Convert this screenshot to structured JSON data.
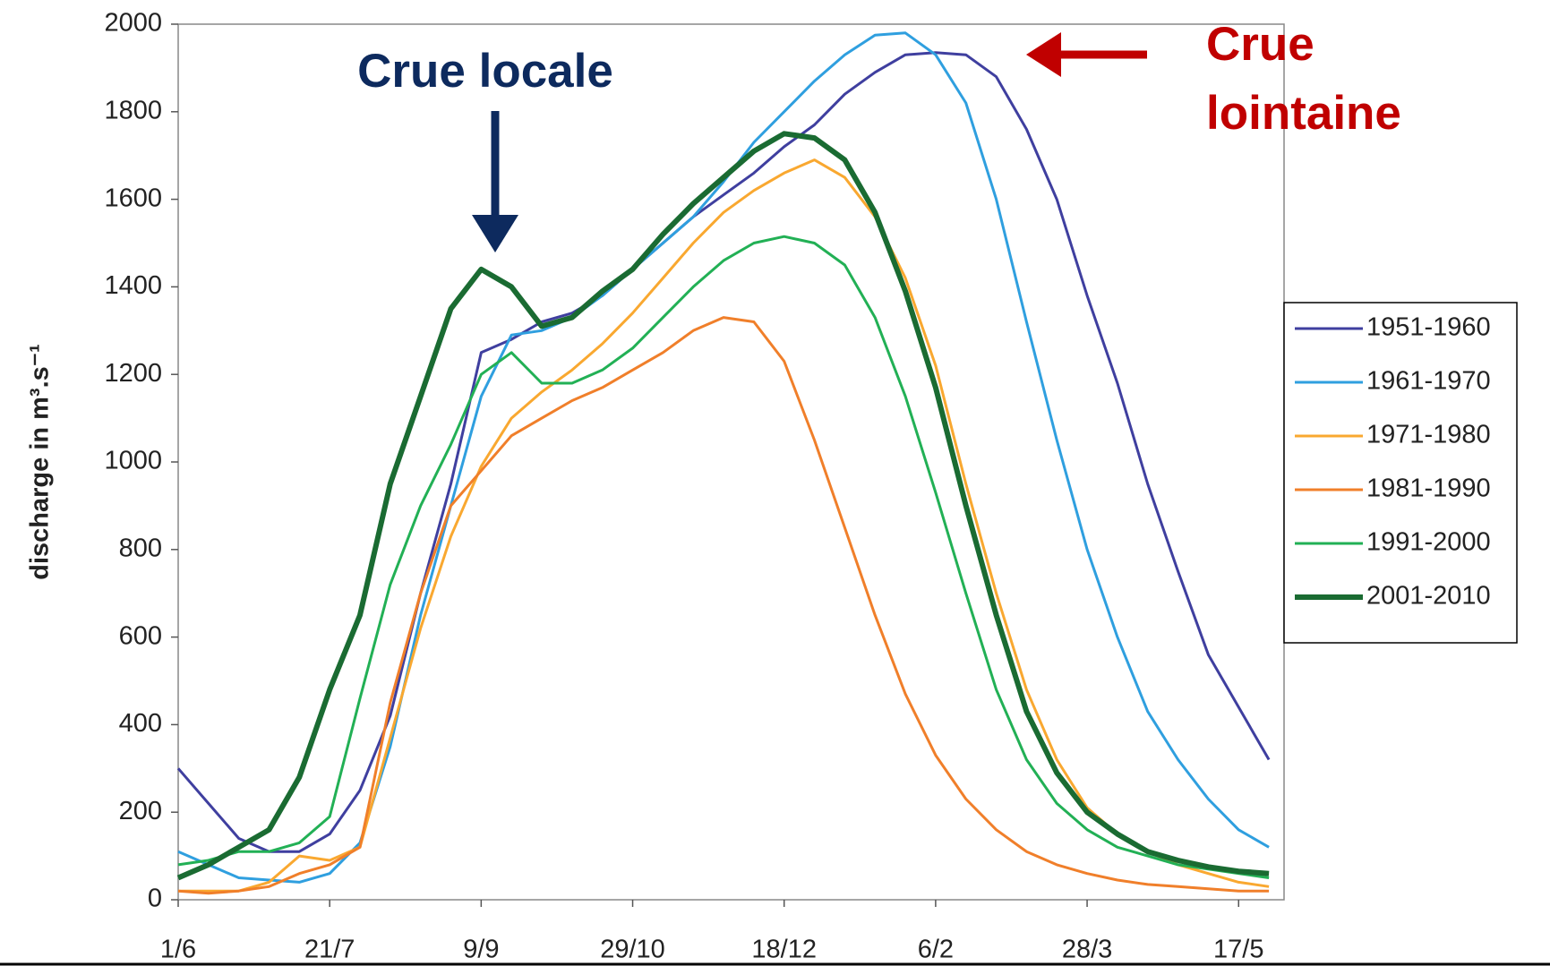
{
  "chart_data": {
    "type": "line",
    "ylabel": "discharge in m³.s⁻¹",
    "annotations": [
      {
        "text": "Crue locale"
      },
      {
        "lines": [
          "Crue",
          "lointaine"
        ]
      }
    ],
    "x": [
      0,
      10,
      20,
      30,
      40,
      50,
      60,
      70,
      80,
      90,
      100,
      110,
      120,
      130,
      140,
      150,
      160,
      170,
      180,
      190,
      200,
      210,
      220,
      230,
      240,
      250,
      260,
      270,
      280,
      290,
      300,
      310,
      320,
      330,
      340,
      350,
      360
    ],
    "xlim": [
      0,
      365
    ],
    "xticks": [
      {
        "value": 0,
        "label": "1/6"
      },
      {
        "value": 50,
        "label": "21/7"
      },
      {
        "value": 100,
        "label": "9/9"
      },
      {
        "value": 150,
        "label": "29/10"
      },
      {
        "value": 200,
        "label": "18/12"
      },
      {
        "value": 250,
        "label": "6/2"
      },
      {
        "value": 300,
        "label": "28/3"
      },
      {
        "value": 350,
        "label": "17/5"
      }
    ],
    "ylim": [
      0,
      2000
    ],
    "yticks": [
      0,
      200,
      400,
      600,
      800,
      1000,
      1200,
      1400,
      1600,
      1800,
      2000
    ],
    "legend": "right",
    "series": [
      {
        "name": "1951-1960",
        "color": "#3f3f9f",
        "values": [
          300,
          220,
          140,
          110,
          110,
          150,
          250,
          420,
          700,
          950,
          1250,
          1280,
          1320,
          1340,
          1380,
          1440,
          1500,
          1560,
          1610,
          1660,
          1720,
          1770,
          1840,
          1890,
          1930,
          1935,
          1930,
          1880,
          1760,
          1600,
          1380,
          1180,
          950,
          750,
          560,
          440,
          320
        ]
      },
      {
        "name": "1961-1970",
        "color": "#2f9fdf",
        "values": [
          110,
          80,
          50,
          45,
          40,
          60,
          130,
          350,
          650,
          900,
          1150,
          1290,
          1300,
          1330,
          1380,
          1440,
          1500,
          1560,
          1640,
          1730,
          1800,
          1870,
          1930,
          1975,
          1980,
          1930,
          1820,
          1600,
          1320,
          1050,
          800,
          600,
          430,
          320,
          230,
          160,
          120
        ]
      },
      {
        "name": "1971-1980",
        "color": "#f9a830",
        "values": [
          20,
          20,
          20,
          40,
          100,
          90,
          120,
          370,
          620,
          830,
          990,
          1100,
          1160,
          1210,
          1270,
          1340,
          1420,
          1500,
          1570,
          1620,
          1660,
          1690,
          1650,
          1560,
          1420,
          1220,
          950,
          700,
          480,
          320,
          210,
          150,
          110,
          80,
          60,
          40,
          30
        ]
      },
      {
        "name": "1981-1990",
        "color": "#f07f2a",
        "values": [
          20,
          15,
          20,
          30,
          60,
          80,
          120,
          450,
          700,
          900,
          980,
          1060,
          1100,
          1140,
          1170,
          1210,
          1250,
          1300,
          1330,
          1320,
          1230,
          1050,
          850,
          650,
          470,
          330,
          230,
          160,
          110,
          80,
          60,
          45,
          35,
          30,
          25,
          20,
          20
        ]
      },
      {
        "name": "1991-2000",
        "color": "#22b055",
        "values": [
          80,
          90,
          110,
          110,
          130,
          190,
          460,
          720,
          900,
          1040,
          1200,
          1250,
          1180,
          1180,
          1210,
          1260,
          1330,
          1400,
          1460,
          1500,
          1515,
          1500,
          1450,
          1330,
          1150,
          930,
          700,
          480,
          320,
          220,
          160,
          120,
          100,
          80,
          70,
          60,
          50
        ]
      },
      {
        "name": "2001-2010",
        "color": "#1a6b32",
        "values": [
          50,
          80,
          120,
          160,
          280,
          480,
          650,
          950,
          1150,
          1350,
          1440,
          1400,
          1310,
          1330,
          1390,
          1440,
          1520,
          1590,
          1650,
          1710,
          1750,
          1740,
          1690,
          1570,
          1390,
          1170,
          900,
          650,
          430,
          290,
          200,
          150,
          110,
          90,
          75,
          65,
          60
        ]
      }
    ]
  }
}
